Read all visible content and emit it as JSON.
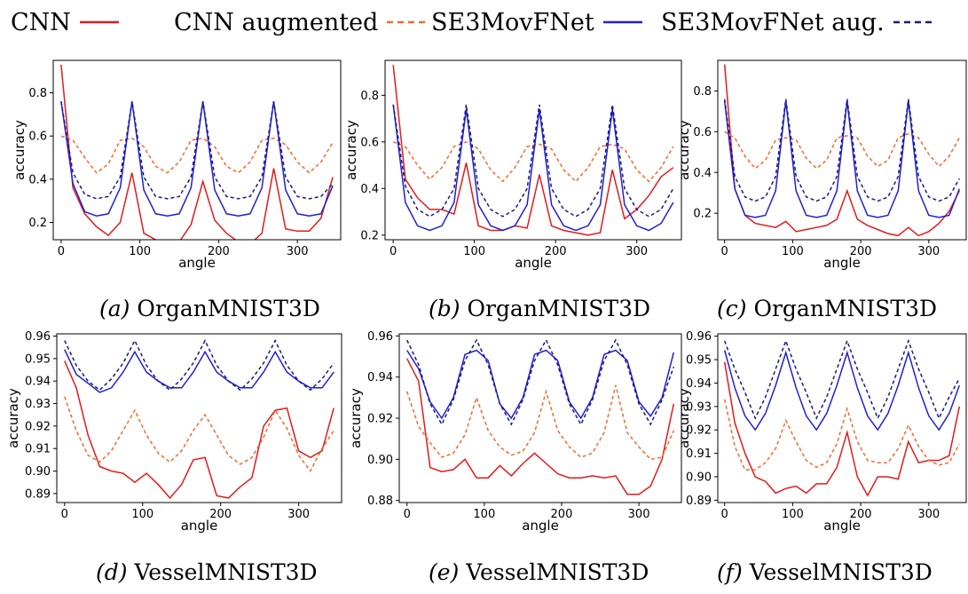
{
  "legend": [
    {
      "label": "CNN",
      "color": "#e41a1c",
      "dash": "solid"
    },
    {
      "label": "CNN augmented",
      "color": "#f26b2a",
      "dash": "dashed"
    },
    {
      "label": "SE3MovFNet",
      "color": "#1f1fd6",
      "dash": "solid"
    },
    {
      "label": "SE3MovFNet aug.",
      "color": "#1a1a80",
      "dash": "dashed"
    }
  ],
  "chart_data": [
    {
      "type": "line",
      "caption_letter": "(a)",
      "caption_text": "OrganMNIST3D",
      "xlabel": "angle",
      "ylabel": "accuracy",
      "xlim": [
        -10,
        355
      ],
      "ylim": [
        0.12,
        0.95
      ],
      "xticks": [
        0,
        100,
        200,
        300
      ],
      "yticks": [
        0.2,
        0.4,
        0.6,
        0.8
      ],
      "ytick_labels": [
        "0.2",
        "0.4",
        "0.6",
        "0.8"
      ],
      "x": [
        0,
        15,
        30,
        45,
        60,
        75,
        90,
        105,
        120,
        135,
        150,
        165,
        180,
        195,
        210,
        225,
        240,
        255,
        270,
        285,
        300,
        315,
        330,
        345
      ],
      "series": [
        {
          "name": "CNN",
          "color": "#e41a1c",
          "dash": "solid",
          "values": [
            0.93,
            0.36,
            0.24,
            0.18,
            0.14,
            0.2,
            0.43,
            0.15,
            0.12,
            0.1,
            0.11,
            0.19,
            0.39,
            0.21,
            0.15,
            0.11,
            0.1,
            0.15,
            0.45,
            0.17,
            0.16,
            0.16,
            0.22,
            0.41
          ]
        },
        {
          "name": "CNN augmented",
          "color": "#f26b2a",
          "dash": "dashed",
          "values": [
            0.6,
            0.58,
            0.5,
            0.43,
            0.47,
            0.58,
            0.59,
            0.55,
            0.46,
            0.43,
            0.48,
            0.58,
            0.59,
            0.55,
            0.46,
            0.43,
            0.48,
            0.58,
            0.59,
            0.56,
            0.48,
            0.43,
            0.48,
            0.57
          ]
        },
        {
          "name": "SE3MovFNet",
          "color": "#1f1fd6",
          "dash": "solid",
          "values": [
            0.76,
            0.38,
            0.25,
            0.23,
            0.24,
            0.36,
            0.76,
            0.35,
            0.24,
            0.23,
            0.24,
            0.36,
            0.76,
            0.35,
            0.24,
            0.23,
            0.24,
            0.36,
            0.76,
            0.35,
            0.24,
            0.23,
            0.24,
            0.37
          ]
        },
        {
          "name": "SE3MovFNet aug.",
          "color": "#1a1a80",
          "dash": "dashed",
          "values": [
            0.76,
            0.43,
            0.33,
            0.31,
            0.32,
            0.41,
            0.76,
            0.41,
            0.32,
            0.31,
            0.32,
            0.41,
            0.76,
            0.41,
            0.32,
            0.31,
            0.32,
            0.41,
            0.76,
            0.41,
            0.32,
            0.31,
            0.32,
            0.38
          ]
        }
      ]
    },
    {
      "type": "line",
      "caption_letter": "(b)",
      "caption_text": "OrganMNIST3D",
      "xlabel": "angle",
      "ylabel": "accuracy",
      "xlim": [
        -10,
        355
      ],
      "ylim": [
        0.18,
        0.95
      ],
      "xticks": [
        0,
        100,
        200,
        300
      ],
      "yticks": [
        0.2,
        0.4,
        0.6,
        0.8
      ],
      "ytick_labels": [
        "0.2",
        "0.4",
        "0.6",
        "0.8"
      ],
      "x": [
        0,
        15,
        30,
        45,
        60,
        75,
        90,
        105,
        120,
        135,
        150,
        165,
        180,
        195,
        210,
        225,
        240,
        255,
        270,
        285,
        300,
        315,
        330,
        345
      ],
      "series": [
        {
          "name": "CNN",
          "color": "#e41a1c",
          "dash": "solid",
          "values": [
            0.93,
            0.44,
            0.36,
            0.31,
            0.31,
            0.29,
            0.51,
            0.24,
            0.22,
            0.22,
            0.24,
            0.23,
            0.46,
            0.24,
            0.22,
            0.21,
            0.2,
            0.21,
            0.48,
            0.27,
            0.31,
            0.37,
            0.45,
            0.49
          ]
        },
        {
          "name": "CNN augmented",
          "color": "#f26b2a",
          "dash": "dashed",
          "values": [
            0.6,
            0.58,
            0.5,
            0.44,
            0.49,
            0.58,
            0.6,
            0.57,
            0.48,
            0.43,
            0.49,
            0.58,
            0.59,
            0.57,
            0.48,
            0.43,
            0.49,
            0.58,
            0.59,
            0.57,
            0.48,
            0.43,
            0.49,
            0.58
          ]
        },
        {
          "name": "SE3MovFNet",
          "color": "#1f1fd6",
          "dash": "solid",
          "values": [
            0.76,
            0.34,
            0.24,
            0.22,
            0.24,
            0.34,
            0.74,
            0.33,
            0.24,
            0.22,
            0.24,
            0.33,
            0.74,
            0.33,
            0.24,
            0.22,
            0.24,
            0.33,
            0.74,
            0.33,
            0.24,
            0.22,
            0.25,
            0.34
          ]
        },
        {
          "name": "SE3MovFNet aug.",
          "color": "#1a1a80",
          "dash": "dashed",
          "values": [
            0.76,
            0.41,
            0.31,
            0.28,
            0.31,
            0.4,
            0.76,
            0.4,
            0.31,
            0.28,
            0.31,
            0.4,
            0.76,
            0.4,
            0.31,
            0.28,
            0.31,
            0.4,
            0.76,
            0.4,
            0.31,
            0.28,
            0.31,
            0.4
          ]
        }
      ]
    },
    {
      "type": "line",
      "caption_letter": "(c)",
      "caption_text": "OrganMNIST3D",
      "xlabel": "angle",
      "ylabel": "accuracy",
      "xlim": [
        -10,
        355
      ],
      "ylim": [
        0.07,
        0.95
      ],
      "xticks": [
        0,
        100,
        200,
        300
      ],
      "yticks": [
        0.2,
        0.4,
        0.6,
        0.8
      ],
      "ytick_labels": [
        "0.2",
        "0.4",
        "0.6",
        "0.8"
      ],
      "x": [
        0,
        15,
        30,
        45,
        60,
        75,
        90,
        105,
        120,
        135,
        150,
        165,
        180,
        195,
        210,
        225,
        240,
        255,
        270,
        285,
        300,
        315,
        330,
        345
      ],
      "series": [
        {
          "name": "CNN",
          "color": "#e41a1c",
          "dash": "solid",
          "values": [
            0.93,
            0.32,
            0.19,
            0.15,
            0.14,
            0.13,
            0.16,
            0.11,
            0.12,
            0.13,
            0.14,
            0.17,
            0.31,
            0.17,
            0.14,
            0.12,
            0.1,
            0.09,
            0.13,
            0.09,
            0.11,
            0.15,
            0.21,
            0.31
          ]
        },
        {
          "name": "CNN augmented",
          "color": "#f26b2a",
          "dash": "dashed",
          "values": [
            0.6,
            0.57,
            0.48,
            0.42,
            0.46,
            0.56,
            0.57,
            0.56,
            0.47,
            0.42,
            0.46,
            0.57,
            0.58,
            0.57,
            0.48,
            0.43,
            0.46,
            0.57,
            0.59,
            0.57,
            0.49,
            0.43,
            0.48,
            0.57
          ]
        },
        {
          "name": "SE3MovFNet",
          "color": "#1f1fd6",
          "dash": "solid",
          "values": [
            0.75,
            0.32,
            0.19,
            0.18,
            0.19,
            0.31,
            0.75,
            0.31,
            0.19,
            0.18,
            0.19,
            0.31,
            0.75,
            0.31,
            0.19,
            0.18,
            0.19,
            0.31,
            0.75,
            0.31,
            0.19,
            0.18,
            0.19,
            0.32
          ]
        },
        {
          "name": "SE3MovFNet aug.",
          "color": "#1a1a80",
          "dash": "dashed",
          "values": [
            0.76,
            0.38,
            0.28,
            0.26,
            0.28,
            0.38,
            0.76,
            0.38,
            0.28,
            0.26,
            0.28,
            0.38,
            0.76,
            0.38,
            0.28,
            0.26,
            0.28,
            0.38,
            0.76,
            0.38,
            0.28,
            0.26,
            0.28,
            0.37
          ]
        }
      ]
    },
    {
      "type": "line",
      "caption_letter": "(d)",
      "caption_text": "VesselMNIST3D",
      "xlabel": "angle",
      "ylabel": "accuracy",
      "xlim": [
        -10,
        355
      ],
      "ylim": [
        0.886,
        0.961
      ],
      "xticks": [
        0,
        100,
        200,
        300
      ],
      "yticks": [
        0.89,
        0.9,
        0.91,
        0.92,
        0.93,
        0.94,
        0.95,
        0.96
      ],
      "ytick_labels": [
        "0.89",
        "0.90",
        "0.91",
        "0.92",
        "0.93",
        "0.94",
        "0.95",
        "0.96"
      ],
      "x": [
        0,
        15,
        30,
        45,
        60,
        75,
        90,
        105,
        120,
        135,
        150,
        165,
        180,
        195,
        210,
        225,
        240,
        255,
        270,
        285,
        300,
        315,
        330,
        345
      ],
      "series": [
        {
          "name": "CNN",
          "color": "#e41a1c",
          "dash": "solid",
          "values": [
            0.949,
            0.937,
            0.916,
            0.902,
            0.9,
            0.899,
            0.895,
            0.899,
            0.894,
            0.888,
            0.894,
            0.905,
            0.906,
            0.889,
            0.888,
            0.893,
            0.897,
            0.92,
            0.927,
            0.928,
            0.909,
            0.906,
            0.909,
            0.928
          ]
        },
        {
          "name": "CNN augmented",
          "color": "#f26b2a",
          "dash": "dashed",
          "values": [
            0.933,
            0.918,
            0.907,
            0.904,
            0.909,
            0.918,
            0.927,
            0.916,
            0.908,
            0.904,
            0.909,
            0.918,
            0.925,
            0.916,
            0.907,
            0.903,
            0.906,
            0.915,
            0.927,
            0.919,
            0.907,
            0.9,
            0.91,
            0.918
          ]
        },
        {
          "name": "SE3MovFNet",
          "color": "#1f1fd6",
          "dash": "solid",
          "values": [
            0.954,
            0.943,
            0.939,
            0.935,
            0.937,
            0.944,
            0.953,
            0.944,
            0.94,
            0.937,
            0.937,
            0.944,
            0.953,
            0.944,
            0.94,
            0.937,
            0.937,
            0.944,
            0.953,
            0.944,
            0.94,
            0.937,
            0.937,
            0.944
          ]
        },
        {
          "name": "SE3MovFNet aug.",
          "color": "#1a1a80",
          "dash": "dashed",
          "values": [
            0.958,
            0.947,
            0.94,
            0.936,
            0.941,
            0.948,
            0.958,
            0.947,
            0.94,
            0.936,
            0.941,
            0.948,
            0.958,
            0.947,
            0.94,
            0.936,
            0.941,
            0.948,
            0.958,
            0.947,
            0.94,
            0.936,
            0.941,
            0.948
          ]
        }
      ]
    },
    {
      "type": "line",
      "caption_letter": "(e)",
      "caption_text": "VesselMNIST3D",
      "xlabel": "angle",
      "ylabel": "accuracy",
      "xlim": [
        -10,
        355
      ],
      "ylim": [
        0.879,
        0.961
      ],
      "xticks": [
        0,
        100,
        200,
        300
      ],
      "yticks": [
        0.88,
        0.9,
        0.92,
        0.94,
        0.96
      ],
      "ytick_labels": [
        "0.88",
        "0.90",
        "0.92",
        "0.94",
        "0.96"
      ],
      "x": [
        0,
        15,
        30,
        45,
        60,
        75,
        90,
        105,
        120,
        135,
        150,
        165,
        180,
        195,
        210,
        225,
        240,
        255,
        270,
        285,
        300,
        315,
        330,
        345
      ],
      "series": [
        {
          "name": "CNN",
          "color": "#e41a1c",
          "dash": "solid",
          "values": [
            0.949,
            0.938,
            0.896,
            0.894,
            0.895,
            0.9,
            0.891,
            0.891,
            0.897,
            0.892,
            0.898,
            0.903,
            0.898,
            0.893,
            0.891,
            0.891,
            0.892,
            0.891,
            0.892,
            0.883,
            0.883,
            0.887,
            0.9,
            0.927
          ]
        },
        {
          "name": "CNN augmented",
          "color": "#f26b2a",
          "dash": "dashed",
          "values": [
            0.933,
            0.916,
            0.908,
            0.901,
            0.903,
            0.912,
            0.93,
            0.914,
            0.906,
            0.902,
            0.904,
            0.913,
            0.933,
            0.914,
            0.906,
            0.901,
            0.903,
            0.913,
            0.936,
            0.913,
            0.906,
            0.9,
            0.901,
            0.914
          ]
        },
        {
          "name": "SE3MovFNet",
          "color": "#1f1fd6",
          "dash": "solid",
          "values": [
            0.953,
            0.944,
            0.928,
            0.92,
            0.93,
            0.951,
            0.953,
            0.948,
            0.927,
            0.92,
            0.93,
            0.951,
            0.953,
            0.948,
            0.928,
            0.92,
            0.93,
            0.951,
            0.953,
            0.948,
            0.928,
            0.921,
            0.93,
            0.952
          ]
        },
        {
          "name": "SE3MovFNet aug.",
          "color": "#1a1a80",
          "dash": "dashed",
          "values": [
            0.958,
            0.946,
            0.927,
            0.917,
            0.929,
            0.948,
            0.958,
            0.946,
            0.927,
            0.917,
            0.929,
            0.948,
            0.958,
            0.946,
            0.927,
            0.917,
            0.929,
            0.948,
            0.958,
            0.946,
            0.927,
            0.917,
            0.929,
            0.945
          ]
        }
      ]
    },
    {
      "type": "line",
      "caption_letter": "(f)",
      "caption_text": "VesselMNIST3D",
      "xlabel": "angle",
      "ylabel": "accuracy",
      "xlim": [
        -10,
        355
      ],
      "ylim": [
        0.889,
        0.961
      ],
      "xticks": [
        0,
        100,
        200,
        300
      ],
      "yticks": [
        0.89,
        0.9,
        0.91,
        0.92,
        0.93,
        0.94,
        0.95,
        0.96
      ],
      "ytick_labels": [
        "0.89",
        "0.90",
        "0.91",
        "0.92",
        "0.93",
        "0.94",
        "0.95",
        "0.96"
      ],
      "x": [
        0,
        15,
        30,
        45,
        60,
        75,
        90,
        105,
        120,
        135,
        150,
        165,
        180,
        195,
        210,
        225,
        240,
        255,
        270,
        285,
        300,
        315,
        330,
        345
      ],
      "series": [
        {
          "name": "CNN",
          "color": "#e41a1c",
          "dash": "solid",
          "values": [
            0.949,
            0.923,
            0.91,
            0.9,
            0.898,
            0.893,
            0.895,
            0.896,
            0.893,
            0.897,
            0.897,
            0.904,
            0.919,
            0.9,
            0.892,
            0.9,
            0.9,
            0.899,
            0.915,
            0.906,
            0.907,
            0.907,
            0.909,
            0.93
          ]
        },
        {
          "name": "CNN augmented",
          "color": "#f26b2a",
          "dash": "dashed",
          "values": [
            0.933,
            0.913,
            0.903,
            0.903,
            0.906,
            0.912,
            0.924,
            0.915,
            0.907,
            0.904,
            0.906,
            0.914,
            0.929,
            0.915,
            0.907,
            0.906,
            0.906,
            0.912,
            0.922,
            0.913,
            0.907,
            0.905,
            0.906,
            0.914
          ]
        },
        {
          "name": "SE3MovFNet",
          "color": "#1f1fd6",
          "dash": "solid",
          "values": [
            0.954,
            0.938,
            0.926,
            0.92,
            0.927,
            0.939,
            0.953,
            0.938,
            0.926,
            0.92,
            0.927,
            0.939,
            0.953,
            0.938,
            0.926,
            0.92,
            0.927,
            0.939,
            0.953,
            0.938,
            0.926,
            0.92,
            0.927,
            0.939
          ]
        },
        {
          "name": "SE3MovFNet aug.",
          "color": "#1a1a80",
          "dash": "dashed",
          "values": [
            0.958,
            0.946,
            0.936,
            0.925,
            0.934,
            0.946,
            0.958,
            0.946,
            0.936,
            0.925,
            0.934,
            0.946,
            0.958,
            0.946,
            0.936,
            0.925,
            0.934,
            0.946,
            0.958,
            0.946,
            0.936,
            0.925,
            0.934,
            0.942
          ]
        }
      ]
    }
  ]
}
